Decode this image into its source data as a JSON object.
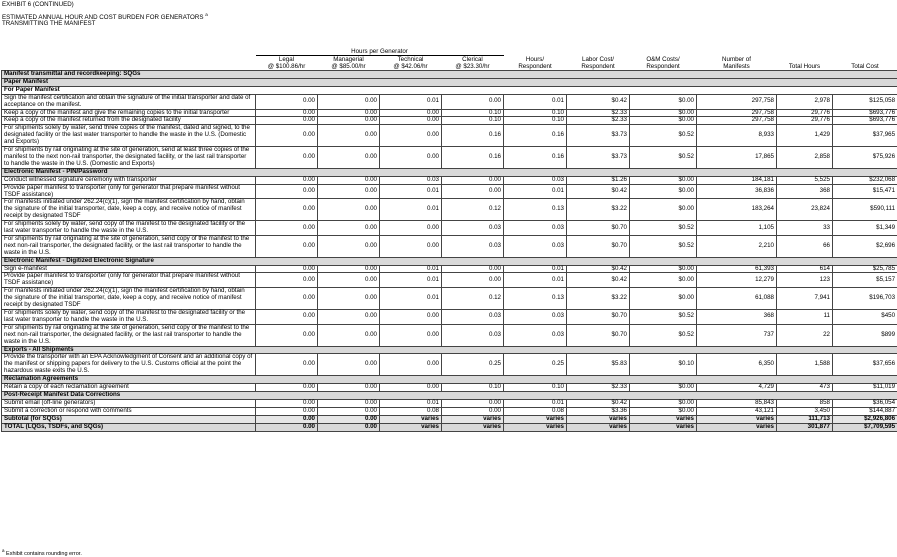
{
  "header": {
    "exhibit": "EXHIBIT 6 (CONTINUED)",
    "title": "ESTIMATED ANNUAL HOUR AND COST BURDEN FOR GENERATORS",
    "title_note": "a",
    "subtitle": "TRANSMITTING THE MANIFEST"
  },
  "table": {
    "group_header": "Hours per Generator",
    "columns": [
      [
        "Legal",
        "@ $100.86/hr"
      ],
      [
        "Managerial",
        "@ $85.00/hr"
      ],
      [
        "Technical",
        "@ $42.06/hr"
      ],
      [
        "Clerical",
        "@ $23.30/hr"
      ],
      [
        "Hours/",
        "Respondent"
      ],
      [
        "Labor Cost/",
        "Respondent"
      ],
      [
        "O&M Costs/",
        "Respondent"
      ],
      [
        "Number of",
        "Manifests"
      ],
      [
        "Total Hours"
      ],
      [
        "Total Cost"
      ]
    ],
    "rows": [
      {
        "section": "Manifest transmittal and recordkeeping:  SQGs"
      },
      {
        "section": "Paper Manifest"
      },
      {
        "section": "For Paper Manifest"
      },
      {
        "cells": [
          "Sign the manifest certification and obtain the signature of the initial transporter and date of acceptance on the manifest.",
          "0.00",
          "0.00",
          "0.01",
          "0.00",
          "0.01",
          "$0.42",
          "$0.00",
          "297,758",
          "2,978",
          "$125,058"
        ]
      },
      {
        "cells": [
          "Keep a copy of the manifest and give the remaining copies to the initial transporter",
          "0.00",
          "0.00",
          "0.00",
          "0.10",
          "0.10",
          "$2.33",
          "$0.00",
          "297,758",
          "29,776",
          "$693,776"
        ]
      },
      {
        "cells": [
          "Keep a copy of the manifest returned from the designated facility",
          "0.00",
          "0.00",
          "0.00",
          "0.10",
          "0.10",
          "$2.33",
          "$0.00",
          "297,758",
          "29,776",
          "$693,776"
        ]
      },
      {
        "cells": [
          "For shipments solely by water, send three copies of the manifest, dated and signed, to the designated facility or the last water transporter to handle the waste in the U.S. (Domestic and Exports)",
          "0.00",
          "0.00",
          "0.00",
          "0.16",
          "0.16",
          "$3.73",
          "$0.52",
          "8,933",
          "1,429",
          "$37,965"
        ]
      },
      {
        "cells": [
          "For shipments by rail originating at the site of generation, send at least three copies of the manifest to the next non-rail transporter, the designated facility, or the last rail transporter to handle the waste in the U.S. (Domestic and Exports)",
          "0.00",
          "0.00",
          "0.00",
          "0.16",
          "0.16",
          "$3.73",
          "$0.52",
          "17,865",
          "2,858",
          "$75,926"
        ]
      },
      {
        "section": "Electronic Manifest - PIN/Password"
      },
      {
        "cells": [
          "Conduct witnessed signature ceremony with transporter",
          "0.00",
          "0.00",
          "0.03",
          "0.00",
          "0.03",
          "$1.26",
          "$0.00",
          "184,181",
          "5,525",
          "$232,068"
        ]
      },
      {
        "cells": [
          "Provide paper manifest to transporter (only for generator that prepare manifest without TSDF assistance)",
          "0.00",
          "0.00",
          "0.01",
          "0.00",
          "0.01",
          "$0.42",
          "$0.00",
          "36,836",
          "368",
          "$15,471"
        ]
      },
      {
        "cells": [
          "For manifests initiated under 262.24(c)(1), sign the manifest certification by hand, obtain the signature of the initial transporter, date, keep a copy, and receive notice of manifest receipt by designated TSDF",
          "0.00",
          "0.00",
          "0.01",
          "0.12",
          "0.13",
          "$3.22",
          "$0.00",
          "183,264",
          "23,824",
          "$590,111"
        ]
      },
      {
        "cells": [
          "For shipments solely by water, send copy of the manifest to the designated facility or the last water transporter to handle the waste in the U.S.",
          "0.00",
          "0.00",
          "0.00",
          "0.03",
          "0.03",
          "$0.70",
          "$0.52",
          "1,105",
          "33",
          "$1,349"
        ]
      },
      {
        "cells": [
          "For shipments by rail originating at the site of generation, send copy of the manifest to the next non-rail transporter, the designated facility, or the last rail transporter to handle the waste in the U.S.",
          "0.00",
          "0.00",
          "0.00",
          "0.03",
          "0.03",
          "$0.70",
          "$0.52",
          "2,210",
          "66",
          "$2,696"
        ]
      },
      {
        "section": "Electronic Manifest - Digitized Electronic Signature"
      },
      {
        "cells": [
          "Sign e-manifest",
          "0.00",
          "0.00",
          "0.01",
          "0.00",
          "0.01",
          "$0.42",
          "$0.00",
          "61,393",
          "614",
          "$25,785"
        ]
      },
      {
        "cells": [
          "Provide paper manifest to transporter (only for generator that prepare manifest without TSDF assistance)",
          "0.00",
          "0.00",
          "0.01",
          "0.00",
          "0.01",
          "$0.42",
          "$0.00",
          "12,279",
          "123",
          "$5,157"
        ]
      },
      {
        "cells": [
          "For manifests initiated under 262.24(c)(1), sign the manifest certification by hand, obtain the signature of the initial transporter, date, keep a copy, and receive notice of manifest receipt by designated TSDF",
          "0.00",
          "0.00",
          "0.01",
          "0.12",
          "0.13",
          "$3.22",
          "$0.00",
          "61,088",
          "7,941",
          "$196,703"
        ]
      },
      {
        "cells": [
          "For shipments solely by water, send copy of the manifest to the designated facility or the last water transporter to handle the waste in the U.S.",
          "0.00",
          "0.00",
          "0.00",
          "0.03",
          "0.03",
          "$0.70",
          "$0.52",
          "368",
          "11",
          "$450"
        ]
      },
      {
        "cells": [
          "For shipments by rail originating at the site of generation, send copy of the manifest to the next non-rail transporter, the designated facility, or the last rail transporter to handle the waste in the U.S.",
          "0.00",
          "0.00",
          "0.00",
          "0.03",
          "0.03",
          "$0.70",
          "$0.52",
          "737",
          "22",
          "$899"
        ]
      },
      {
        "section": "Exports - All Shipments"
      },
      {
        "cells": [
          "Provide the transporter with an EPA Acknowledgment of Consent and an additional copy of the manifest or shipping papers for delivery to the U.S. Customs official at the point the hazardous waste exits the U.S.",
          "0.00",
          "0.00",
          "0.00",
          "0.25",
          "0.25",
          "$5.83",
          "$0.10",
          "6,350",
          "1,588",
          "$37,656"
        ]
      },
      {
        "section": "Reclamation Agreements"
      },
      {
        "cells": [
          "Retain a copy of each reclamation agreement",
          "0.00",
          "0.00",
          "0.00",
          "0.10",
          "0.10",
          "$2.33",
          "$0.00",
          "4,729",
          "473",
          "$11,019"
        ]
      },
      {
        "section": "Post-Receipt Manifest Data Corrections"
      },
      {
        "cells": [
          "Submit email (off-line generators)",
          "0.00",
          "0.00",
          "0.01",
          "0.00",
          "0.01",
          "$0.42",
          "$0.00",
          "85,843",
          "858",
          "$36,054"
        ]
      },
      {
        "cells": [
          "Submit a correction or respond with comments",
          "0.00",
          "0.00",
          "0.08",
          "0.00",
          "0.08",
          "$3.36",
          "$0.00",
          "43,121",
          "3,450",
          "$144,887"
        ]
      },
      {
        "cells": [
          "Subtotal (for SQGs)",
          "0.00",
          "0.00",
          "varies",
          "varies",
          "varies",
          "varies",
          "varies",
          "varies",
          "111,713",
          "$2,926,806"
        ]
      },
      {
        "cells": [
          "TOTAL (LQGs, TSDFs, and SQGs)",
          "0.00",
          "0.00",
          "varies",
          "varies",
          "varies",
          "varies",
          "varies",
          "varies",
          "301,877",
          "$7,709,595"
        ]
      }
    ]
  },
  "footnote": {
    "mark": "a",
    "text": "Exhibit contains rounding error."
  }
}
